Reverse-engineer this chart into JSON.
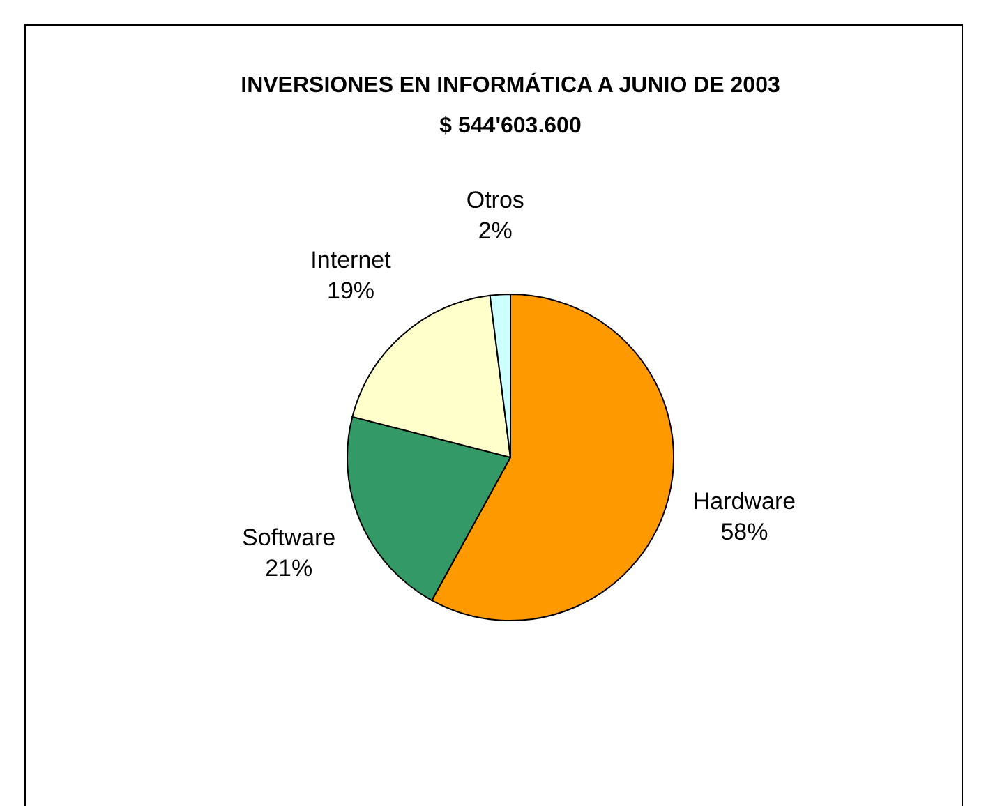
{
  "chart_data": {
    "type": "pie",
    "title": "INVERSIONES EN INFORMÁTICA A JUNIO DE 2003",
    "subtitle": "$ 544'603.600",
    "categories": [
      "Hardware",
      "Software",
      "Internet",
      "Otros"
    ],
    "values": [
      58,
      21,
      19,
      2
    ],
    "colors": [
      "#ff9900",
      "#339966",
      "#ffffcc",
      "#ccffff"
    ],
    "value_labels": [
      "58%",
      "21%",
      "19%",
      "2%"
    ]
  }
}
